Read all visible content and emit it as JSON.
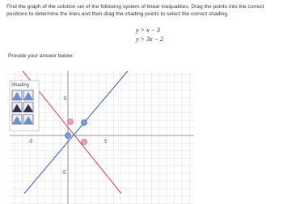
{
  "prompt": "Find the graph of the solution set of the following system of linear inequalities. Drag the points into the correct positions to determine the lines and then drag the shading points to select the correct shading.",
  "inequalities": [
    "y > x − 3",
    "y > 3x − 2"
  ],
  "answer_label": "Provide your answer below:",
  "shading_label": "Shading",
  "axis_labels": {
    "x_min": "-5",
    "x_max": "5",
    "y_max": "5",
    "y_min": "-5"
  }
}
